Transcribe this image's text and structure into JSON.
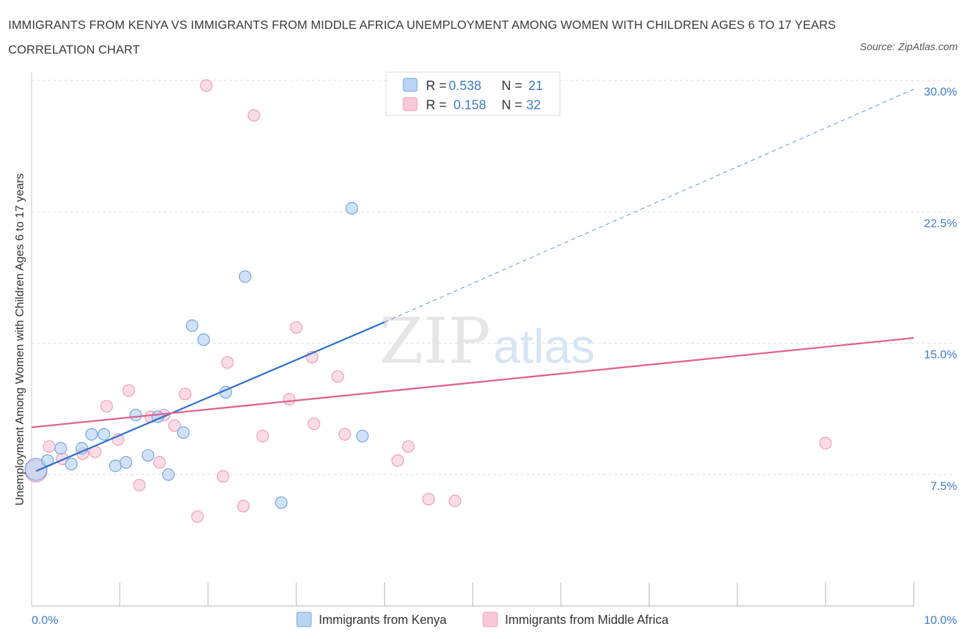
{
  "title": "IMMIGRANTS FROM KENYA VS IMMIGRANTS FROM MIDDLE AFRICA UNEMPLOYMENT AMONG WOMEN WITH CHILDREN AGES 6 TO 17 YEARS CORRELATION CHART",
  "source": "Source: ZipAtlas.com",
  "watermark": {
    "zip": "ZIP",
    "atlas": "atlas"
  },
  "chart_data": {
    "type": "scatter",
    "xlabel": "",
    "ylabel": "Unemployment Among Women with Children Ages 6 to 17 years",
    "xlim": [
      0,
      10
    ],
    "ylim": [
      0,
      30
    ],
    "x_tick_labels": {
      "min": "0.0%",
      "max": "10.0%"
    },
    "y_ticks": [
      7.5,
      15.0,
      22.5,
      30.0
    ],
    "y_tick_labels": [
      "7.5%",
      "15.0%",
      "22.5%",
      "30.0%"
    ],
    "grid": true,
    "legend": {
      "placement": "top-center",
      "rows": [
        {
          "r_label": "R =",
          "r_value": "0.538",
          "n_label": "N =",
          "n_value": "21"
        },
        {
          "r_label": "R =",
          "r_value": "0.158",
          "n_label": "N =",
          "n_value": "32"
        }
      ]
    },
    "series": [
      {
        "name": "Immigrants from Kenya",
        "color": "#6fa3e0",
        "fill": "#b9d3f3",
        "line_color": "#2f72cc",
        "trend": {
          "x0": 0.05,
          "y0": 7.7,
          "x1": 4.0,
          "y1": 16.2,
          "dash_to_x": 10.0,
          "dash_to_y": 29.5
        },
        "points": [
          {
            "x": 0.05,
            "y": 7.8,
            "big": true
          },
          {
            "x": 0.18,
            "y": 8.3
          },
          {
            "x": 0.33,
            "y": 9.0
          },
          {
            "x": 0.45,
            "y": 8.1
          },
          {
            "x": 0.57,
            "y": 9.0
          },
          {
            "x": 0.68,
            "y": 9.8
          },
          {
            "x": 0.82,
            "y": 9.8
          },
          {
            "x": 0.95,
            "y": 8.0
          },
          {
            "x": 1.07,
            "y": 8.2
          },
          {
            "x": 1.18,
            "y": 10.9
          },
          {
            "x": 1.32,
            "y": 8.6
          },
          {
            "x": 1.43,
            "y": 10.8
          },
          {
            "x": 1.55,
            "y": 7.5
          },
          {
            "x": 1.72,
            "y": 9.9
          },
          {
            "x": 1.82,
            "y": 16.0
          },
          {
            "x": 1.95,
            "y": 15.2
          },
          {
            "x": 2.2,
            "y": 12.2
          },
          {
            "x": 2.42,
            "y": 18.8
          },
          {
            "x": 2.83,
            "y": 5.9
          },
          {
            "x": 3.63,
            "y": 22.7
          },
          {
            "x": 3.75,
            "y": 9.7
          }
        ]
      },
      {
        "name": "Immigrants from Middle Africa",
        "color": "#ef9bb6",
        "fill": "#f8c9d8",
        "line_color": "#e0628e",
        "trend": {
          "x0": 0.0,
          "y0": 10.2,
          "x1": 10.0,
          "y1": 15.3
        },
        "points": [
          {
            "x": 0.05,
            "y": 7.7,
            "big": true
          },
          {
            "x": 0.2,
            "y": 9.1
          },
          {
            "x": 0.35,
            "y": 8.4
          },
          {
            "x": 0.58,
            "y": 8.7
          },
          {
            "x": 0.72,
            "y": 8.8
          },
          {
            "x": 0.85,
            "y": 11.4
          },
          {
            "x": 0.98,
            "y": 9.5
          },
          {
            "x": 1.1,
            "y": 12.3
          },
          {
            "x": 1.22,
            "y": 6.9
          },
          {
            "x": 1.35,
            "y": 10.8
          },
          {
            "x": 1.45,
            "y": 8.2
          },
          {
            "x": 1.62,
            "y": 10.3
          },
          {
            "x": 1.74,
            "y": 12.1
          },
          {
            "x": 1.88,
            "y": 5.1
          },
          {
            "x": 1.98,
            "y": 29.7
          },
          {
            "x": 2.17,
            "y": 7.4
          },
          {
            "x": 2.22,
            "y": 13.9
          },
          {
            "x": 2.4,
            "y": 5.7
          },
          {
            "x": 2.52,
            "y": 28.0
          },
          {
            "x": 2.62,
            "y": 9.7
          },
          {
            "x": 2.92,
            "y": 11.8
          },
          {
            "x": 3.0,
            "y": 15.9
          },
          {
            "x": 3.18,
            "y": 14.2
          },
          {
            "x": 3.47,
            "y": 13.1
          },
          {
            "x": 3.55,
            "y": 9.8
          },
          {
            "x": 4.15,
            "y": 8.3
          },
          {
            "x": 4.27,
            "y": 9.1
          },
          {
            "x": 4.5,
            "y": 6.1
          },
          {
            "x": 4.8,
            "y": 6.0
          },
          {
            "x": 9.0,
            "y": 9.3
          },
          {
            "x": 3.2,
            "y": 10.4
          },
          {
            "x": 1.5,
            "y": 10.9
          }
        ]
      }
    ]
  }
}
